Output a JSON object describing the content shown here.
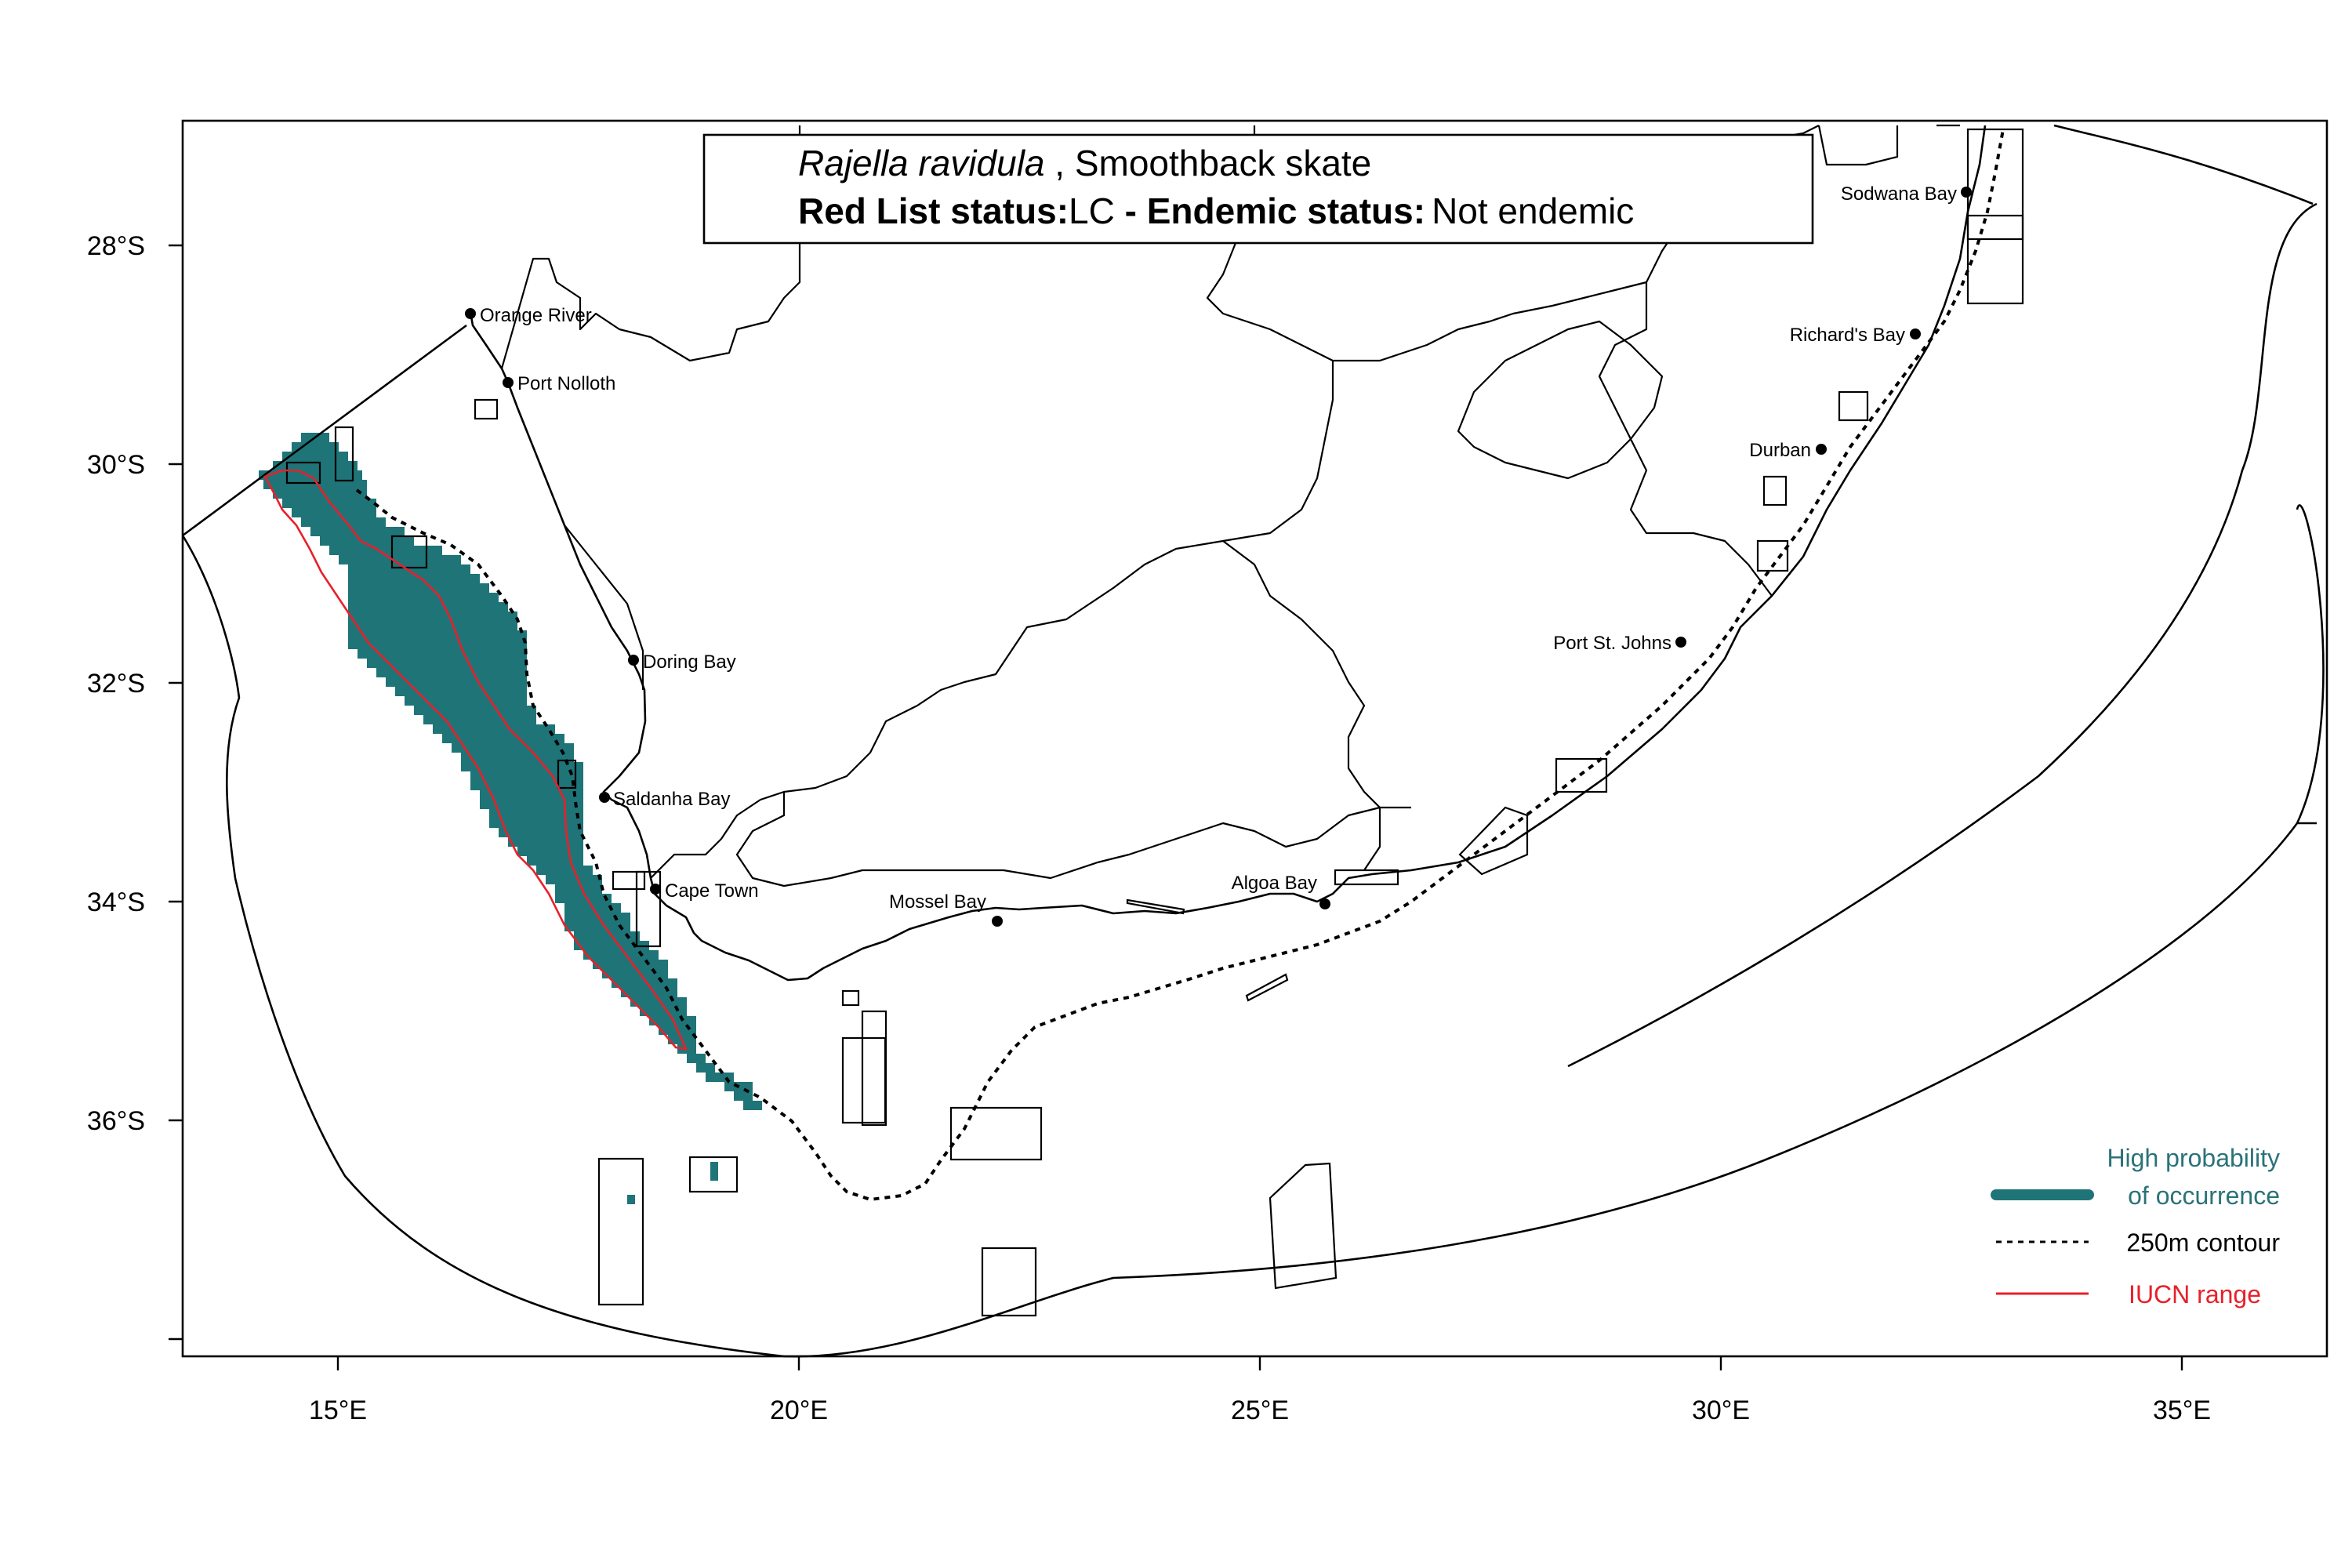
{
  "title": {
    "species_italic": "Rajella ravidula",
    "species_common": " , Smoothback skate",
    "redlist_label": "Red List status:",
    "redlist_value": "LC",
    "endemic_label": " - Endemic status:",
    "endemic_value": "Not endemic"
  },
  "axes": {
    "x_ticks": [
      "15°E",
      "20°E",
      "25°E",
      "30°E",
      "35°E"
    ],
    "y_ticks": [
      "28°S",
      "30°S",
      "32°S",
      "34°S",
      "36°S"
    ]
  },
  "places": [
    "Orange River",
    "Port Nolloth",
    "Doring Bay",
    "Saldanha Bay",
    "Cape Town",
    "Mossel Bay",
    "Algoa Bay",
    "Port St. Johns",
    "Durban",
    "Richard's Bay",
    "Sodwana Bay"
  ],
  "legend": {
    "occurrence_line1": "High probability",
    "occurrence_line2": "of occurrence",
    "contour": "250m contour",
    "iucn": "IUCN range"
  },
  "colors": {
    "occurrence": "#1f7478",
    "iucn": "#e8202a",
    "lines": "#000000"
  }
}
